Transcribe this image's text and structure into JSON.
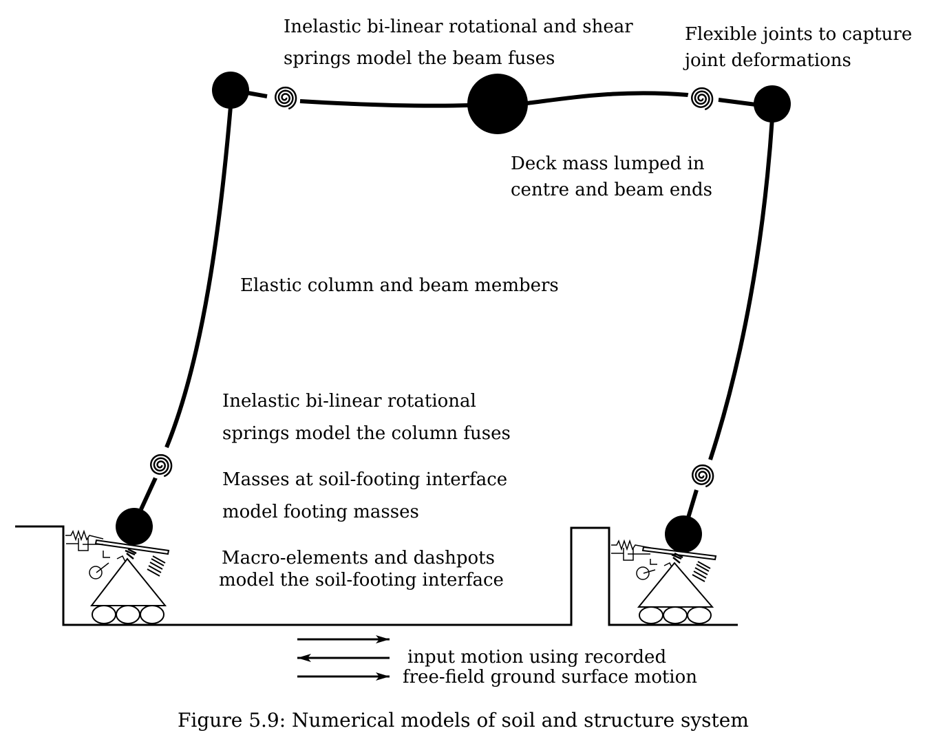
{
  "labels": {
    "beam_fuses": {
      "line1": "Inelastic bi-linear rotational and shear",
      "line2": "springs model the beam fuses"
    },
    "flexible_joints": {
      "line1": "Flexible joints to capture",
      "line2": "joint deformations"
    },
    "deck_mass": {
      "line1": "Deck mass lumped in",
      "line2": "centre and beam ends"
    },
    "elastic_members": "Elastic column and beam members",
    "column_fuses": {
      "line1": "Inelastic bi-linear rotational",
      "line2": "springs model the column fuses"
    },
    "footing_masses": {
      "line1": "Masses at soil-footing interface",
      "line2": "model footing masses"
    },
    "macro_elements": {
      "line1": "Macro-elements and dashpots",
      "line2": "model the soil-footing interface"
    },
    "input_motion": {
      "line1": "input motion using recorded",
      "line2": "free-field ground surface motion"
    }
  },
  "caption": "Figure 5.9: Numerical models of soil and structure system"
}
